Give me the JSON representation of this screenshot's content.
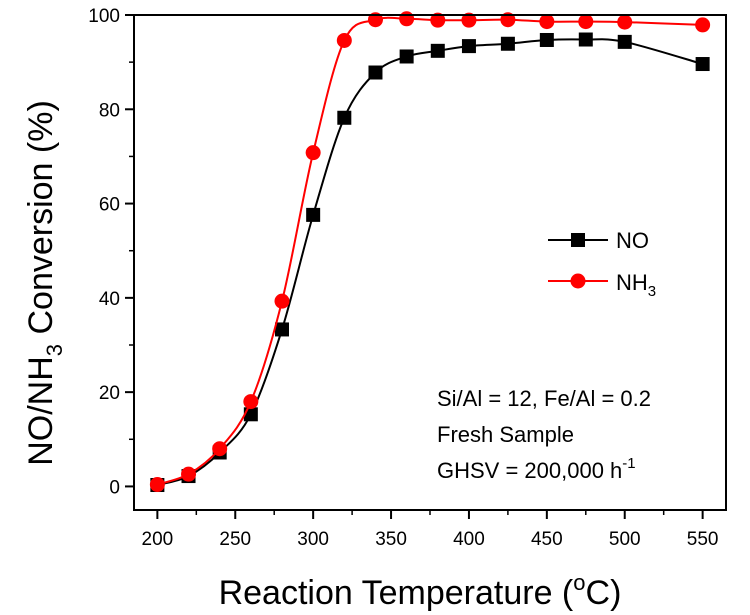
{
  "chart_data": {
    "type": "line",
    "xlabel": "Reaction Temperature (°C)",
    "ylabel": "NO/NH₃ Conversion (%)",
    "xlim": [
      185,
      565
    ],
    "ylim": [
      -5,
      100
    ],
    "xticks": [
      "200",
      "250",
      "300",
      "350",
      "400",
      "450",
      "500",
      "550"
    ],
    "yticks": [
      "0",
      "20",
      "40",
      "60",
      "80",
      "100"
    ],
    "grid": false,
    "legend_position": "center-right",
    "series": [
      {
        "name": "NO",
        "color": "#000000",
        "marker": "square",
        "x": [
          200,
          220,
          240,
          260,
          280,
          300,
          320,
          340,
          360,
          380,
          400,
          425,
          450,
          475,
          500,
          550
        ],
        "y": [
          0.3,
          2.2,
          7.2,
          15.3,
          33.3,
          57.6,
          78.2,
          87.8,
          91.2,
          92.4,
          93.4,
          93.9,
          94.7,
          94.8,
          94.3,
          89.6
        ]
      },
      {
        "name": "NH3",
        "color": "#ff0000",
        "marker": "circle",
        "x": [
          200,
          220,
          240,
          260,
          280,
          300,
          320,
          340,
          360,
          380,
          400,
          425,
          450,
          475,
          500,
          550
        ],
        "y": [
          0.4,
          2.6,
          8.0,
          18.0,
          39.3,
          70.8,
          94.6,
          99.0,
          99.2,
          98.9,
          98.9,
          99.0,
          98.6,
          98.6,
          98.5,
          97.9
        ]
      }
    ],
    "annotations": [
      "Si/Al = 12, Fe/Al = 0.2",
      "Fresh Sample",
      "GHSV = 200,000 h⁻¹"
    ]
  }
}
